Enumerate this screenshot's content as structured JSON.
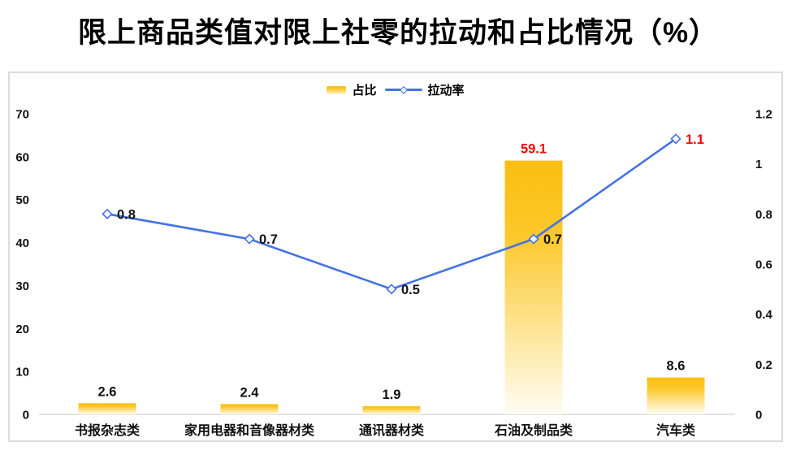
{
  "title": "限上商品类值对限上社零的拉动和占比情况（%）",
  "chart_data": {
    "type": "combo",
    "categories": [
      "书报杂志类",
      "家用电器和音像器材类",
      "通讯器材类",
      "石油及制品类",
      "汽车类"
    ],
    "series": [
      {
        "name": "占比",
        "type": "bar",
        "axis": "left",
        "values": [
          2.6,
          2.4,
          1.9,
          59.1,
          8.6
        ],
        "labels": [
          "2.6",
          "2.4",
          "1.9",
          "59.1",
          "8.6"
        ],
        "label_colors": [
          "#111111",
          "#111111",
          "#111111",
          "#ff0000",
          "#111111"
        ]
      },
      {
        "name": "拉动率",
        "type": "line",
        "axis": "right",
        "values": [
          0.8,
          0.7,
          0.5,
          0.7,
          1.1
        ],
        "labels": [
          "0.8",
          "0.7",
          "0.5",
          "0.7",
          "1.1"
        ],
        "label_colors": [
          "#111111",
          "#111111",
          "#111111",
          "#111111",
          "#ff0000"
        ]
      }
    ],
    "left_axis": {
      "min": 0,
      "max": 70,
      "tick_labels": [
        "0",
        "10",
        "20",
        "30",
        "40",
        "50",
        "60",
        "70"
      ]
    },
    "right_axis": {
      "min": 0,
      "max": 1.2,
      "tick_labels": [
        "0",
        "0.2",
        "0.4",
        "0.6",
        "0.8",
        "1",
        "1.2"
      ]
    },
    "grid": false,
    "legend_position": "top-center",
    "colors": {
      "bar_gradient": [
        {
          "offset": "0%",
          "color": "#fbbe12"
        },
        {
          "offset": "28%",
          "color": "#fcc728"
        },
        {
          "offset": "100%",
          "color": "#fffdf4"
        }
      ],
      "line": "#4472e4",
      "marker_fill": "#f4f7ff",
      "highlight_label": "#ff0000",
      "axis_text": "#111111",
      "baseline": "#e2e2e2",
      "box_border": "#dcdcdc"
    }
  }
}
